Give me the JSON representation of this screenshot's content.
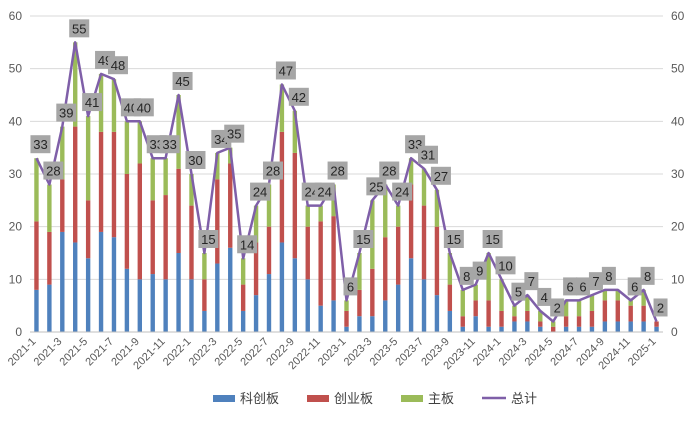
{
  "chart_data": {
    "type": "bar",
    "stacked": true,
    "secondary_line": "总计",
    "ylim": [
      0,
      60
    ],
    "y_ticks": [
      0,
      10,
      20,
      30,
      40,
      50,
      60
    ],
    "y_ticks_right": [
      0,
      10,
      20,
      30,
      40,
      50,
      60
    ],
    "grid": true,
    "legend_position": "bottom",
    "colors": {
      "科创板": "#4f81bd",
      "创业板": "#c0504d",
      "主板": "#9bbb59",
      "总计": "#7f5fa8",
      "label_box": "#a6a6a6"
    },
    "categories": [
      "2021-1",
      "2021-2",
      "2021-3",
      "2021-4",
      "2021-5",
      "2021-6",
      "2021-7",
      "2021-8",
      "2021-9",
      "2021-10",
      "2021-11",
      "2021-12",
      "2022-1",
      "2022-2",
      "2022-3",
      "2022-4",
      "2022-5",
      "2022-6",
      "2022-7",
      "2022-8",
      "2022-9",
      "2022-10",
      "2022-11",
      "2022-12",
      "2023-1",
      "2023-2",
      "2023-3",
      "2023-4",
      "2023-5",
      "2023-6",
      "2023-7",
      "2023-8",
      "2023-9",
      "2023-10",
      "2023-11",
      "2023-12",
      "2024-1",
      "2024-2",
      "2024-3",
      "2024-4",
      "2024-5",
      "2024-6",
      "2024-7",
      "2024-8",
      "2024-9",
      "2024-10",
      "2024-11",
      "2024-12",
      "2025-1"
    ],
    "x_tick_labels": [
      "2021-1",
      "2021-3",
      "2021-5",
      "2021-7",
      "2021-9",
      "2021-11",
      "2022-1",
      "2022-3",
      "2022-5",
      "2022-7",
      "2022-9",
      "2022-11",
      "2023-1",
      "2023-3",
      "2023-5",
      "2023-7",
      "2023-9",
      "2023-11",
      "2024-1",
      "2024-3",
      "2024-5",
      "2024-7",
      "2024-9",
      "2024-11",
      "2025-1"
    ],
    "series": [
      {
        "name": "科创板",
        "values": [
          8,
          9,
          19,
          17,
          14,
          19,
          18,
          12,
          10,
          11,
          10,
          15,
          10,
          4,
          13,
          16,
          4,
          7,
          11,
          17,
          14,
          10,
          5,
          6,
          1,
          3,
          3,
          6,
          9,
          14,
          10,
          7,
          4,
          1,
          3,
          1,
          1,
          2,
          2,
          1,
          0,
          1,
          1,
          1,
          2,
          2,
          2,
          2,
          1
        ]
      },
      {
        "name": "创业板",
        "values": [
          13,
          10,
          10,
          22,
          11,
          19,
          20,
          18,
          22,
          14,
          16,
          16,
          14,
          6,
          16,
          16,
          5,
          10,
          9,
          21,
          20,
          10,
          16,
          16,
          3,
          5,
          9,
          12,
          11,
          14,
          14,
          13,
          5,
          2,
          3,
          5,
          3,
          1,
          2,
          1,
          1,
          2,
          2,
          3,
          4,
          4,
          3,
          3,
          1
        ]
      },
      {
        "name": "主板",
        "values": [
          12,
          9,
          10,
          16,
          16,
          11,
          10,
          10,
          8,
          8,
          7,
          14,
          6,
          5,
          5,
          3,
          5,
          7,
          8,
          9,
          8,
          4,
          3,
          6,
          2,
          7,
          13,
          10,
          4,
          5,
          7,
          7,
          6,
          5,
          3,
          9,
          6,
          2,
          3,
          2,
          1,
          3,
          3,
          3,
          2,
          2,
          1,
          3,
          0
        ]
      }
    ],
    "totals": [
      33,
      28,
      39,
      55,
      41,
      49,
      48,
      40,
      40,
      33,
      33,
      45,
      30,
      15,
      34,
      35,
      14,
      24,
      28,
      47,
      42,
      24,
      24,
      28,
      6,
      15,
      25,
      28,
      24,
      33,
      31,
      27,
      15,
      8,
      9,
      15,
      10,
      5,
      7,
      4,
      2,
      6,
      6,
      7,
      8,
      8,
      6,
      8,
      2
    ],
    "totals_shown": [
      true,
      true,
      true,
      true,
      true,
      true,
      true,
      true,
      true,
      true,
      true,
      true,
      true,
      true,
      true,
      true,
      true,
      true,
      true,
      true,
      true,
      true,
      true,
      true,
      true,
      true,
      true,
      true,
      true,
      true,
      true,
      true,
      true,
      true,
      true,
      true,
      true,
      true,
      true,
      true,
      true,
      true,
      true,
      true,
      true,
      false,
      true,
      true,
      true
    ]
  }
}
